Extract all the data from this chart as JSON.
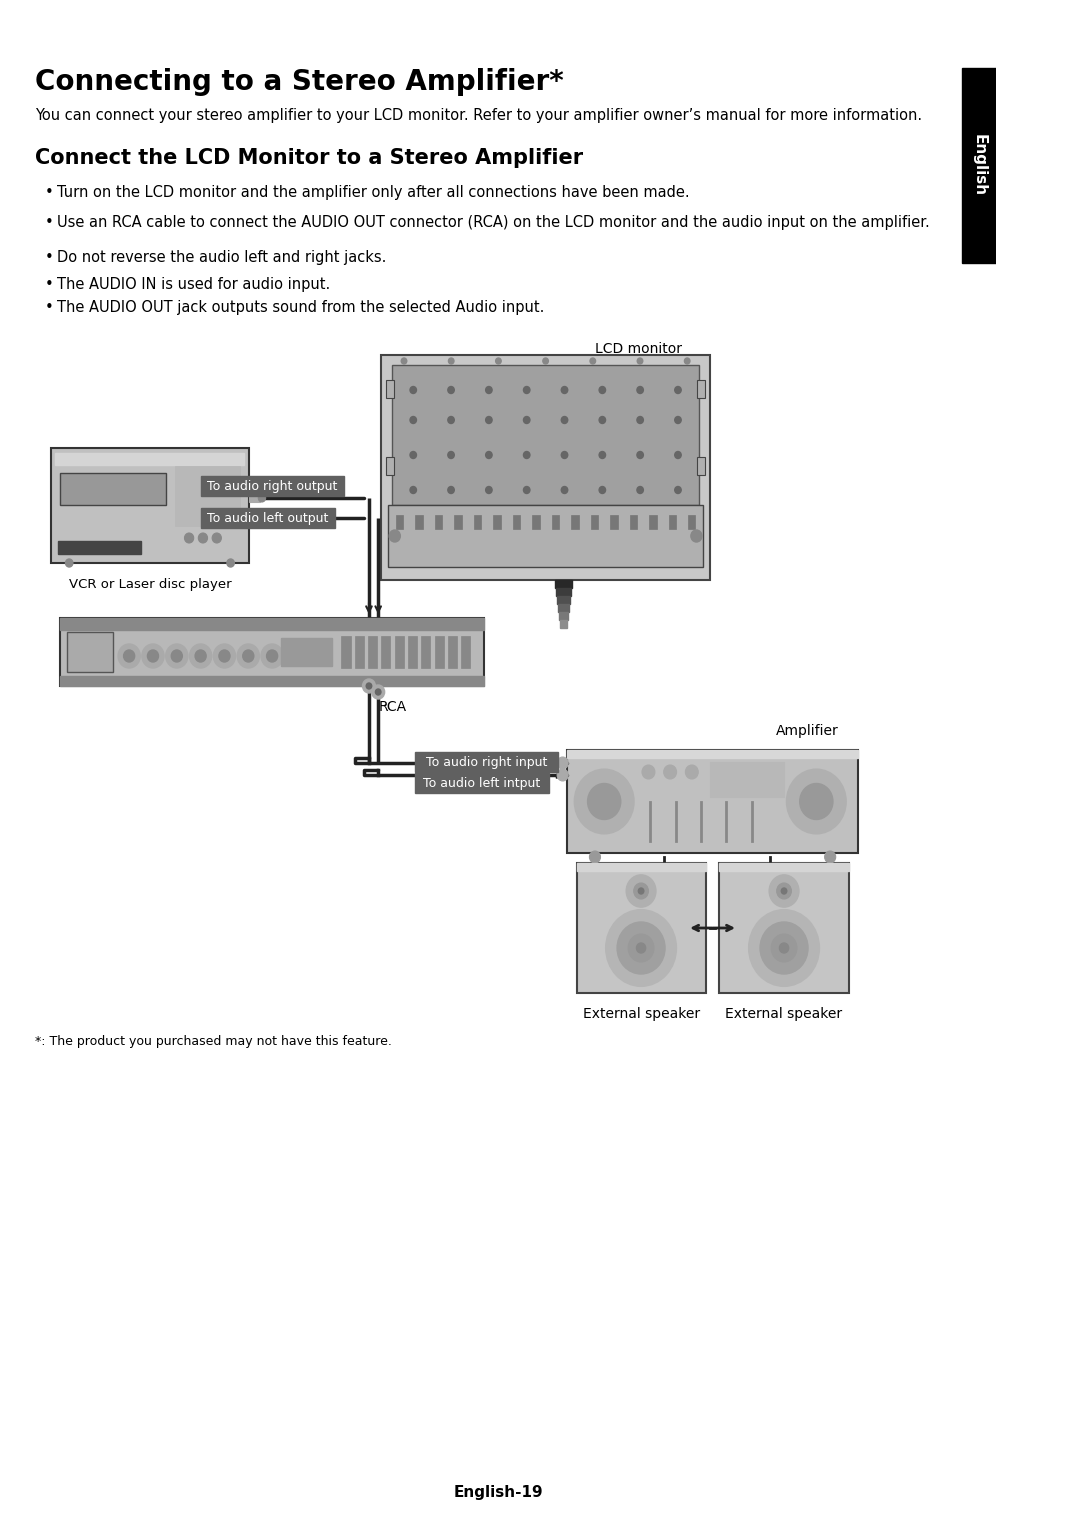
{
  "title": "Connecting to a Stereo Amplifier*",
  "intro_text": "You can connect your stereo amplifier to your LCD monitor. Refer to your amplifier owner’s manual for more information.",
  "section_title": "Connect the LCD Monitor to a Stereo Amplifier",
  "bullets": [
    "Turn on the LCD monitor and the amplifier only after all connections have been made.",
    "Use an RCA cable to connect the AUDIO OUT connector (RCA) on the LCD monitor and the audio input on the amplifier.",
    "Do not reverse the audio left and right jacks.",
    "The AUDIO IN is used for audio input.",
    "The AUDIO OUT jack outputs sound from the selected Audio input."
  ],
  "footnote": "*: The product you purchased may not have this feature.",
  "page_label": "English-19",
  "sidebar_text": "English",
  "sidebar_bg": "#000000",
  "sidebar_fg": "#ffffff",
  "page_bg": "#ffffff",
  "label_bg": "#606060",
  "label_fg": "#ffffff",
  "diagram_labels": {
    "lcd_monitor": "LCD monitor",
    "vcr": "VCR or Laser disc player",
    "rca": "RCA",
    "amplifier": "Amplifier",
    "ext_speaker_left": "External speaker",
    "ext_speaker_right": "External speaker",
    "audio_right_output": "To audio right output",
    "audio_left_output": "To audio left output",
    "audio_right_input": "To audio right input",
    "audio_left_input": "To audio left intput"
  },
  "title_fontsize": 20,
  "intro_fontsize": 10.5,
  "section_fontsize": 15,
  "bullet_fontsize": 10.5,
  "footnote_fontsize": 9,
  "page_label_fontsize": 11,
  "sidebar_fontsize": 11,
  "diag_label_fontsize": 9
}
